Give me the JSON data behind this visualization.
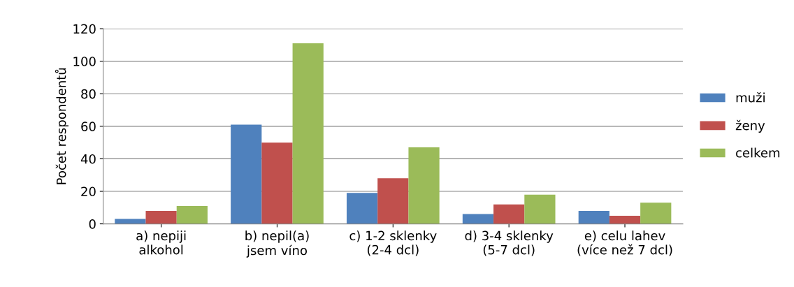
{
  "chart_data": {
    "type": "bar",
    "ylabel": "Počet respondentů",
    "categories": [
      "a) nepiji\nalkohol",
      "b) nepil(a)\njsem víno",
      "c) 1-2 sklenky\n(2-4 dcl)",
      "d) 3-4 sklenky\n(5-7 dcl)",
      "e) celu lahev\n(více než 7 dcl)"
    ],
    "series": [
      {
        "name": "muži",
        "color": "#4f81bd",
        "values": [
          3,
          61,
          19,
          6,
          8
        ]
      },
      {
        "name": "ženy",
        "color": "#c0504d",
        "values": [
          8,
          50,
          28,
          12,
          5
        ]
      },
      {
        "name": "celkem",
        "color": "#9bbb59",
        "values": [
          11,
          111,
          47,
          18,
          13
        ]
      }
    ],
    "ylim": [
      0,
      120
    ],
    "yticks": [
      0,
      20,
      40,
      60,
      80,
      100,
      120
    ],
    "grid": "y",
    "legend": "right"
  }
}
